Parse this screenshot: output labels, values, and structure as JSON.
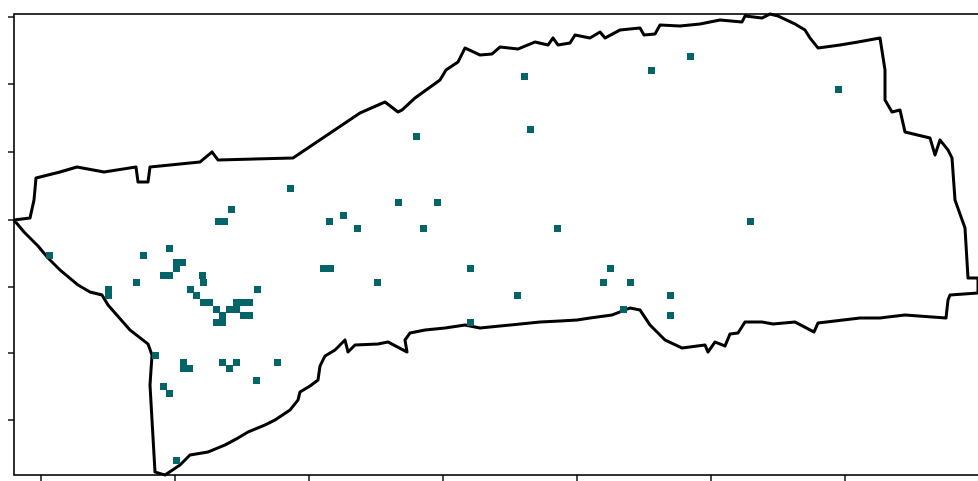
{
  "map": {
    "boundary_color": "#000000",
    "marker_color": "#056467",
    "background_color": "#ffffff",
    "frame_color": "#000000",
    "x_tick_count": 8,
    "y_tick_count": 7,
    "marker_count": 70
  }
}
